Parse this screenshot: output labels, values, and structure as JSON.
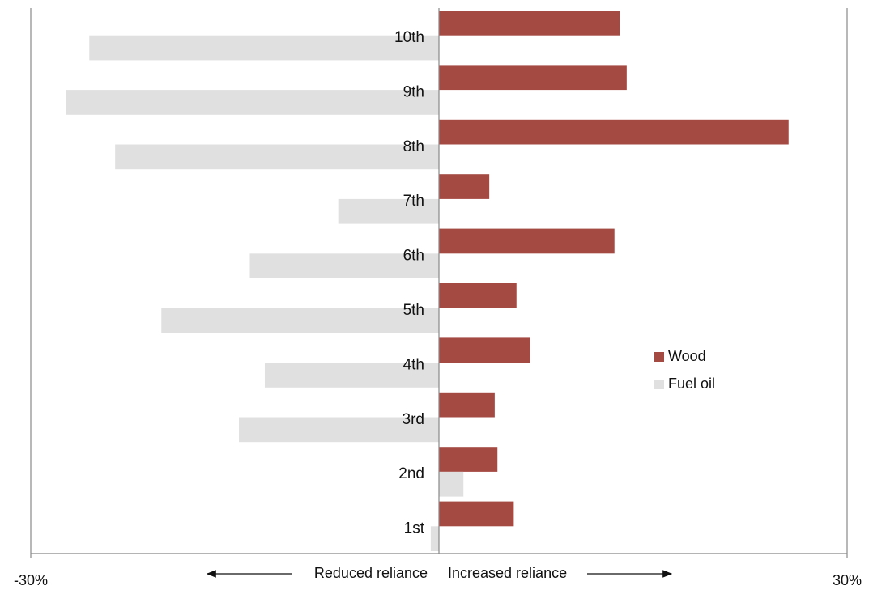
{
  "chart_data": {
    "type": "hbar",
    "categories": [
      "1st",
      "2nd",
      "3rd",
      "4th",
      "5th",
      "6th",
      "7th",
      "8th",
      "9th",
      "10th"
    ],
    "series": [
      {
        "name": "Wood",
        "color": "#a54a43",
        "values": [
          5.5,
          4.3,
          4.1,
          6.7,
          5.7,
          12.9,
          3.7,
          25.7,
          13.8,
          13.3
        ]
      },
      {
        "name": "Fuel oil",
        "color": "#e0e0e0",
        "values": [
          -0.6,
          1.8,
          -14.7,
          -12.8,
          -20.4,
          -13.9,
          -7.4,
          -23.8,
          -27.4,
          -25.7
        ]
      }
    ],
    "xlim": [
      -30,
      30
    ],
    "xticks": [
      {
        "value": -30,
        "label": "-30%"
      },
      {
        "value": 30,
        "label": "30%"
      }
    ],
    "annotations": [
      "Reduced reliance",
      "Increased reliance"
    ],
    "legend": "right"
  }
}
